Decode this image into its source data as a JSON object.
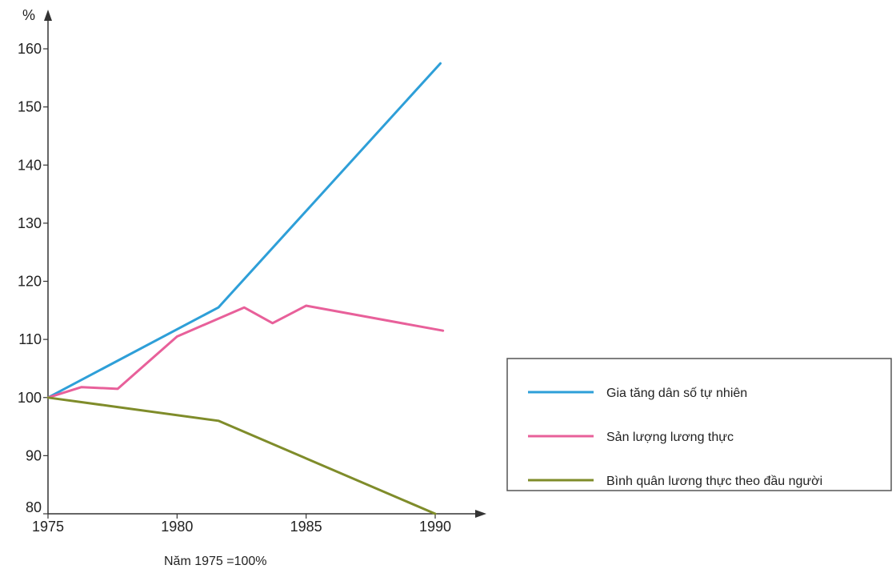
{
  "chart_data": {
    "type": "line",
    "ylabel": "%",
    "note": "Năm 1975 =100%",
    "xlim": [
      1975,
      1990
    ],
    "ylim": [
      80,
      160
    ],
    "x_ticks": [
      1975,
      1980,
      1985,
      1990
    ],
    "y_ticks": [
      80,
      90,
      100,
      110,
      120,
      130,
      140,
      150,
      160
    ],
    "grid": false,
    "legend_position": "right",
    "series": [
      {
        "name": "Gia tăng dân số tự nhiên",
        "color": "#2e9fd8",
        "points": [
          [
            1975,
            100
          ],
          [
            1981.6,
            115.5
          ],
          [
            1990.2,
            157.5
          ]
        ]
      },
      {
        "name": "Sản lượng lương thực",
        "color": "#e8609a",
        "points": [
          [
            1975,
            100
          ],
          [
            1976.3,
            101.8
          ],
          [
            1977.7,
            101.5
          ],
          [
            1980,
            110.5
          ],
          [
            1982.6,
            115.5
          ],
          [
            1983.7,
            112.8
          ],
          [
            1985,
            115.8
          ],
          [
            1990.3,
            111.5
          ]
        ]
      },
      {
        "name": "Bình quân lương thực theo đầu người",
        "color": "#7f8c2a",
        "points": [
          [
            1975,
            100
          ],
          [
            1981.6,
            96
          ],
          [
            1990,
            80
          ]
        ]
      }
    ]
  }
}
